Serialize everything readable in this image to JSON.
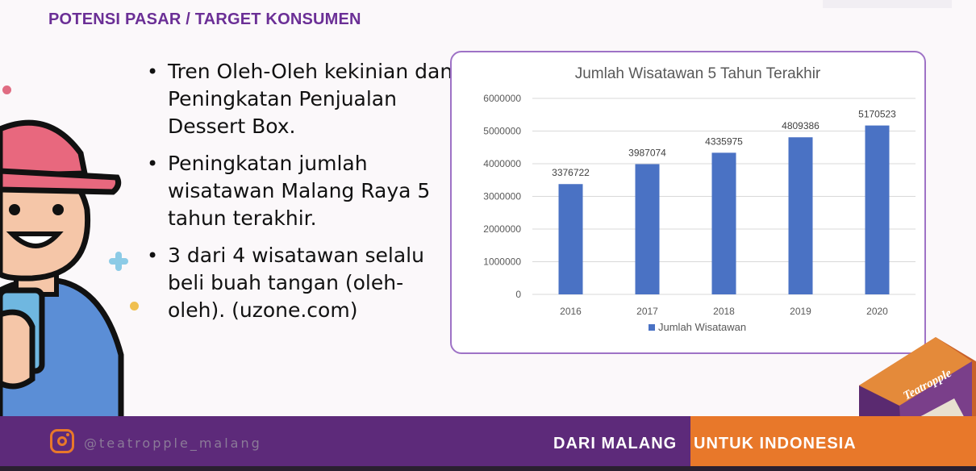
{
  "header": {
    "title": "POTENSI PASAR / TARGET KONSUMEN"
  },
  "bullets": [
    "Tren Oleh-Oleh kekinian dan Peningkatan Penjualan Dessert Box.",
    "Peningkatan jumlah wisatawan Malang Raya 5 tahun terakhir.",
    "3 dari 4 wisatawan selalu beli buah tangan (oleh-oleh). (uzone.com)"
  ],
  "chart_data": {
    "type": "bar",
    "title": "Jumlah Wisatawan 5 Tahun Terakhir",
    "categories": [
      "2016",
      "2017",
      "2018",
      "2019",
      "2020"
    ],
    "series": [
      {
        "name": "Jumlah Wisatawan",
        "values": [
          3376722,
          3987074,
          4335975,
          4809386,
          5170523
        ]
      }
    ],
    "ylim": [
      0,
      6000000
    ],
    "yticks": [
      "0",
      "1000000",
      "2000000",
      "3000000",
      "4000000",
      "5000000",
      "6000000"
    ],
    "grid": true,
    "legend": "bottom",
    "bar_color": "#4a72c4"
  },
  "product": {
    "brand": "Teatropple"
  },
  "footer": {
    "handle": "@teatropple_malang",
    "slogan_part1": "DARI MALANG",
    "slogan_part2": "UNTUK INDONESIA",
    "instagram_icon": "instagram-icon"
  },
  "colors": {
    "accent_purple": "#6b2f96",
    "footer_purple": "#5d2a7a",
    "footer_orange": "#e8782a"
  }
}
